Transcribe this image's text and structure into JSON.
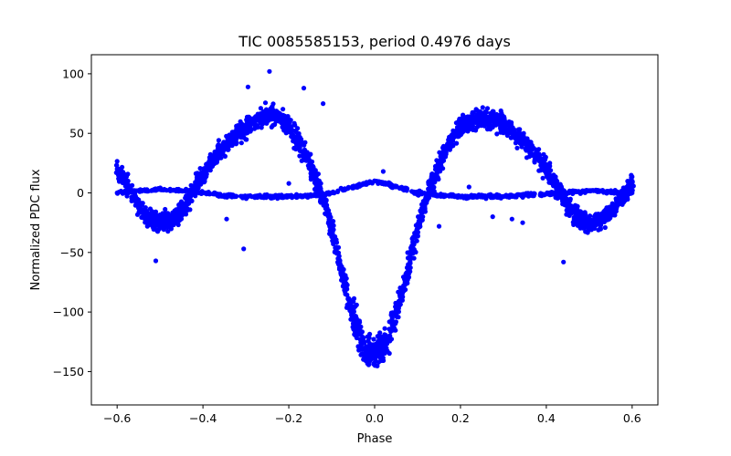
{
  "chart_data": {
    "type": "scatter",
    "title": "TIC 0085585153, period 0.4976 days",
    "xlabel": "Phase",
    "ylabel": "Normalized PDC flux",
    "xlim": [
      -0.66,
      0.66
    ],
    "ylim": [
      -178,
      116
    ],
    "x_ticks": [
      -0.6,
      -0.4,
      -0.2,
      0.0,
      0.2,
      0.4,
      0.6
    ],
    "x_tick_labels": [
      "−0.6",
      "−0.4",
      "−0.2",
      "0.0",
      "0.2",
      "0.4",
      "0.6"
    ],
    "y_ticks": [
      -150,
      -100,
      -50,
      0,
      50,
      100
    ],
    "y_tick_labels": [
      "−150",
      "−100",
      "−50",
      "0",
      "50",
      "100"
    ],
    "grid": false,
    "legend": "none",
    "marker_color": "#0000ff",
    "series": [
      {
        "points": [
          [
            -0.6,
            20
          ],
          [
            -0.58,
            10
          ],
          [
            -0.56,
            -5
          ],
          [
            -0.54,
            -15
          ],
          [
            -0.52,
            -22
          ],
          [
            -0.5,
            -25
          ],
          [
            -0.48,
            -24
          ],
          [
            -0.46,
            -20
          ],
          [
            -0.44,
            -10
          ],
          [
            -0.42,
            5
          ],
          [
            -0.4,
            15
          ],
          [
            -0.38,
            25
          ],
          [
            -0.36,
            35
          ],
          [
            -0.34,
            42
          ],
          [
            -0.32,
            50
          ],
          [
            -0.3,
            55
          ],
          [
            -0.28,
            60
          ],
          [
            -0.26,
            63
          ],
          [
            -0.24,
            65
          ],
          [
            -0.22,
            62
          ],
          [
            -0.2,
            55
          ],
          [
            -0.18,
            45
          ],
          [
            -0.16,
            30
          ],
          [
            -0.14,
            15
          ],
          [
            -0.12,
            -5
          ],
          [
            -0.1,
            -30
          ],
          [
            -0.08,
            -60
          ],
          [
            -0.06,
            -90
          ],
          [
            -0.04,
            -115
          ],
          [
            -0.02,
            -130
          ],
          [
            0.0,
            -135
          ],
          [
            0.02,
            -130
          ],
          [
            0.04,
            -115
          ],
          [
            0.06,
            -90
          ],
          [
            0.08,
            -60
          ],
          [
            0.1,
            -30
          ],
          [
            0.12,
            -5
          ],
          [
            0.14,
            15
          ],
          [
            0.16,
            30
          ],
          [
            0.18,
            45
          ],
          [
            0.2,
            55
          ],
          [
            0.22,
            60
          ],
          [
            0.24,
            63
          ],
          [
            0.26,
            64
          ],
          [
            0.28,
            62
          ],
          [
            0.3,
            58
          ],
          [
            0.32,
            52
          ],
          [
            0.34,
            45
          ],
          [
            0.36,
            38
          ],
          [
            0.38,
            30
          ],
          [
            0.4,
            20
          ],
          [
            0.42,
            8
          ],
          [
            0.44,
            -5
          ],
          [
            0.46,
            -15
          ],
          [
            0.48,
            -22
          ],
          [
            0.5,
            -25
          ],
          [
            0.52,
            -24
          ],
          [
            0.54,
            -20
          ],
          [
            0.56,
            -12
          ],
          [
            0.58,
            -2
          ],
          [
            0.6,
            10
          ],
          [
            -0.6,
            0
          ],
          [
            -0.55,
            2
          ],
          [
            -0.5,
            3
          ],
          [
            -0.45,
            2
          ],
          [
            -0.4,
            0
          ],
          [
            -0.35,
            -2
          ],
          [
            -0.3,
            -3
          ],
          [
            -0.25,
            -3
          ],
          [
            -0.2,
            -3
          ],
          [
            -0.15,
            -2
          ],
          [
            -0.1,
            0
          ],
          [
            -0.05,
            5
          ],
          [
            0.0,
            10
          ],
          [
            0.05,
            5
          ],
          [
            0.1,
            0
          ],
          [
            0.15,
            -2
          ],
          [
            0.2,
            -3
          ],
          [
            0.25,
            -3
          ],
          [
            0.3,
            -3
          ],
          [
            0.35,
            -2
          ],
          [
            0.4,
            -1
          ],
          [
            0.45,
            0
          ],
          [
            0.5,
            2
          ],
          [
            0.55,
            1
          ],
          [
            0.6,
            0
          ],
          [
            -0.245,
            102
          ],
          [
            -0.295,
            89
          ],
          [
            -0.165,
            88
          ],
          [
            -0.305,
            -47
          ],
          [
            -0.345,
            -22
          ],
          [
            -0.51,
            -57
          ],
          [
            0.44,
            -58
          ],
          [
            0.32,
            -22
          ],
          [
            0.345,
            -25
          ],
          [
            0.275,
            -20
          ],
          [
            0.22,
            5
          ],
          [
            0.15,
            -28
          ],
          [
            -0.2,
            8
          ],
          [
            0.02,
            18
          ],
          [
            -0.12,
            75
          ]
        ]
      }
    ]
  }
}
